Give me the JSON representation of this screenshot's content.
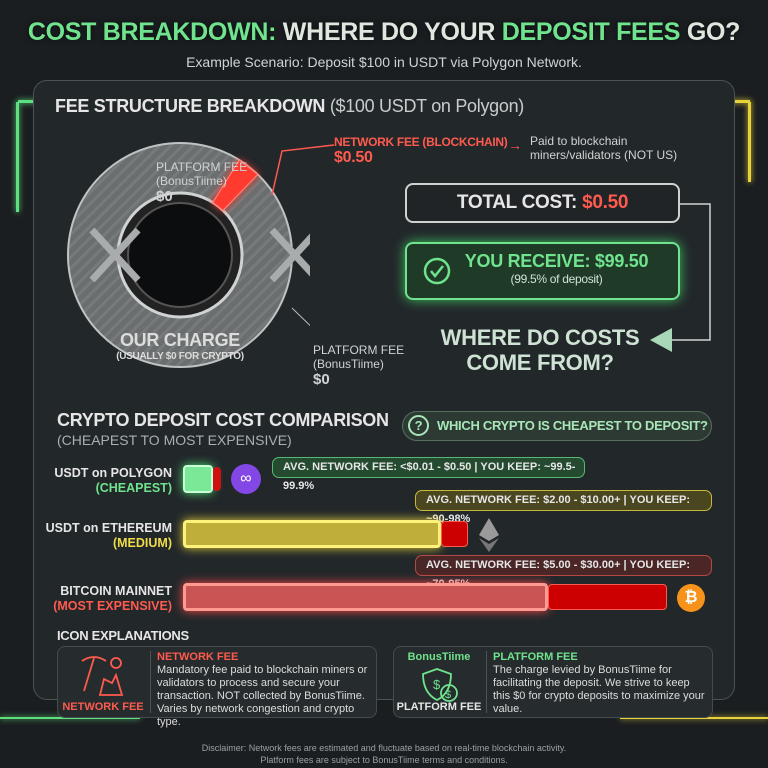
{
  "header": {
    "title_part1": "COST BREAKDOWN:",
    "title_part2": " WHERE DO YOUR ",
    "title_part3": "DEPOSIT FEES",
    "title_part4": " GO?",
    "subtitle": "Example Scenario: Deposit $100 in USDT via Polygon Network."
  },
  "fee_structure": {
    "title": "FEE STRUCTURE BREAKDOWN",
    "title_paren": "($100 USDT on Polygon)",
    "network_fee_label": "NETWORK FEE (BLOCKCHAIN)",
    "network_fee_value": "$0.50",
    "network_fee_note": "Paid to blockchain miners/validators (NOT US)",
    "platform_fee_label": "PLATFORM FEE",
    "platform_fee_owner": "(BonusTiime)",
    "platform_fee_value": "$0",
    "our_charge": "OUR CHARGE",
    "our_charge_sub": "(USUALLY $0 FOR CRYPTO)",
    "network_fee_share_percent": 0.5,
    "total_cost_label": "TOTAL COST:",
    "total_cost_value": "$0.50",
    "receive_label": "YOU RECEIVE: $99.50",
    "receive_sub": "(99.5% of deposit)",
    "where_line1": "WHERE DO COSTS",
    "where_line2": "COME FROM?"
  },
  "comparison": {
    "title": "CRYPTO DEPOSIT COST COMPARISON",
    "subtitle": "(CHEAPEST TO MOST EXPENSIVE)",
    "question": "WHICH CRYPTO IS CHEAPEST TO DEPOSIT?",
    "rows": [
      {
        "name": "USDT on POLYGON",
        "tier": "(CHEAPEST)",
        "info": "AVG. NETWORK FEE: <$0.01 - $0.50 | YOU KEEP: ~99.5-99.9%",
        "icon": "polygon-icon",
        "color": "#6fe38d"
      },
      {
        "name": "USDT on ETHEREUM",
        "tier": "(MEDIUM)",
        "info": "AVG. NETWORK FEE: $2.00 - $10.00+ | YOU KEEP: ~90-98%",
        "icon": "ethereum-icon",
        "color": "#f0dc4a"
      },
      {
        "name": "BITCOIN MAINNET",
        "tier": "(MOST EXPENSIVE)",
        "info": "AVG. NETWORK FEE: $5.00 - $30.00+ | YOU KEEP: ~70-95%",
        "icon": "bitcoin-icon",
        "color": "#ff5a4e"
      }
    ]
  },
  "icons": {
    "title": "ICON EXPLANATIONS",
    "network": {
      "caption": "NETWORK FEE",
      "title": "NETWORK FEE",
      "text": "Mandatory fee paid to blockchain miners or validators to process and secure your transaction. NOT collected by BonusTiime. Varies by network congestion and crypto type."
    },
    "platform": {
      "brand": "BonusTiime",
      "caption": "PLATFORM FEE",
      "title": "PLATFORM FEE",
      "text": "The charge levied by BonusTiime for facilitating the deposit. We strive to keep this $0 for crypto deposits to maximize your value."
    }
  },
  "disclaimer": {
    "line1": "Disclaimer: Network fees are estimated and fluctuate based on real-time blockchain activity.",
    "line2": "Platform fees are subject to BonusTiime terms and conditions."
  },
  "colors": {
    "background": "#1b1e21",
    "green": "#6fe38d",
    "red": "#ff5a4e",
    "yellow": "#f0dc4a"
  }
}
